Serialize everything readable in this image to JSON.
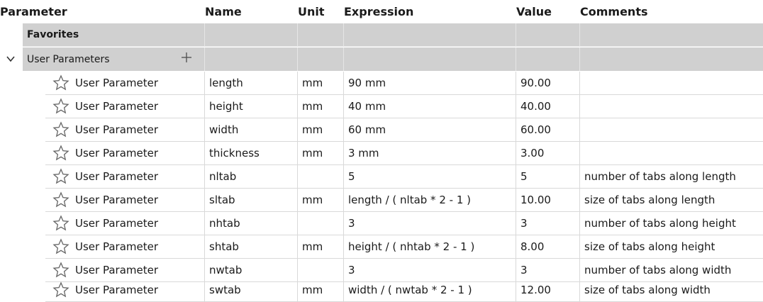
{
  "header": {
    "parameter": "Parameter",
    "name": "Name",
    "unit": "Unit",
    "expression": "Expression",
    "value": "Value",
    "comments": "Comments"
  },
  "groups": {
    "favorites": "Favorites",
    "user_parameters": "User Parameters"
  },
  "icons": {
    "expand": "chevron-down-icon",
    "add": "plus-icon",
    "favorite": "star-outline-icon"
  },
  "rows": [
    {
      "type": "User Parameter",
      "name": "length",
      "unit": "mm",
      "expression": "90 mm",
      "value": "90.00",
      "comment": ""
    },
    {
      "type": "User Parameter",
      "name": "height",
      "unit": "mm",
      "expression": "40 mm",
      "value": "40.00",
      "comment": ""
    },
    {
      "type": "User Parameter",
      "name": "width",
      "unit": "mm",
      "expression": "60 mm",
      "value": "60.00",
      "comment": ""
    },
    {
      "type": "User Parameter",
      "name": "thickness",
      "unit": "mm",
      "expression": "3 mm",
      "value": "3.00",
      "comment": ""
    },
    {
      "type": "User Parameter",
      "name": "nltab",
      "unit": "",
      "expression": "5",
      "value": "5",
      "comment": "number of tabs along length"
    },
    {
      "type": "User Parameter",
      "name": "sltab",
      "unit": "mm",
      "expression": "length / ( nltab * 2 - 1 )",
      "value": "10.00",
      "comment": "size of tabs along length"
    },
    {
      "type": "User Parameter",
      "name": "nhtab",
      "unit": "",
      "expression": "3",
      "value": "3",
      "comment": "number of tabs along height"
    },
    {
      "type": "User Parameter",
      "name": "shtab",
      "unit": "mm",
      "expression": "height / ( nhtab * 2 - 1 )",
      "value": "8.00",
      "comment": "size of tabs along height"
    },
    {
      "type": "User Parameter",
      "name": "nwtab",
      "unit": "",
      "expression": "3",
      "value": "3",
      "comment": "number of tabs along width"
    },
    {
      "type": "User Parameter",
      "name": "swtab",
      "unit": "mm",
      "expression": "width / ( nwtab * 2 - 1 )",
      "value": "12.00",
      "comment": "size of tabs along width"
    }
  ]
}
